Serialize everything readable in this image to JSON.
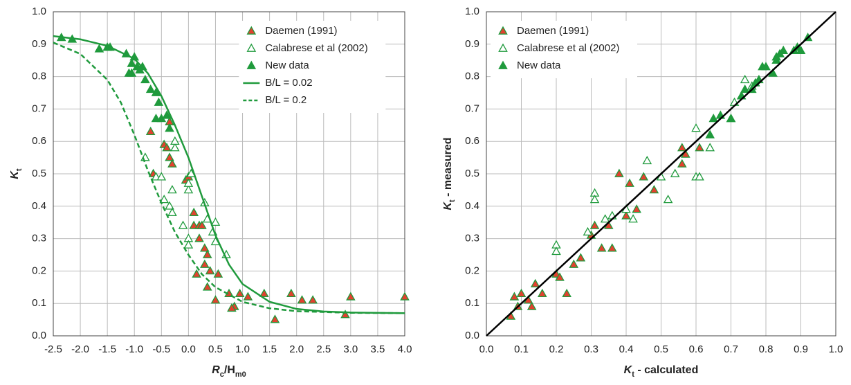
{
  "chart_data": [
    {
      "type": "scatter",
      "xlabel": [
        {
          "text": "R"
        },
        {
          "sub": "c"
        },
        {
          "text": "/H"
        },
        {
          "sub": "m0"
        }
      ],
      "ylabel": [
        {
          "text": "K"
        },
        {
          "sub": "t"
        }
      ],
      "xlim": [
        -2.5,
        4.0
      ],
      "xticks": [
        -2.5,
        {
          "value": -2,
          "label": "-2.0"
        },
        -1.5,
        {
          "value": -1,
          "label": "-1.0"
        },
        -0.5,
        {
          "value": 0,
          "label": "0.0"
        },
        0.5,
        {
          "value": 1,
          "label": "1.0"
        },
        1.5,
        {
          "value": 2,
          "label": "2.0"
        },
        2.5,
        {
          "value": 3,
          "label": "3.0"
        },
        3.5,
        {
          "value": 4,
          "label": "4.0"
        }
      ],
      "ylim": [
        0,
        1
      ],
      "yticks": [
        {
          "value": 0,
          "label": "0.0"
        },
        0.1,
        0.2,
        0.3,
        0.4,
        0.5,
        0.6,
        0.7,
        0.8,
        0.9,
        {
          "value": 1,
          "label": "1.0"
        }
      ],
      "grid": true,
      "legend": "upper right",
      "series": [
        {
          "name": "Daemen (1991)",
          "kind": "marker",
          "color": "#1f9a3c",
          "facecolor": "#e2412f",
          "x": [
            -0.7,
            -0.65,
            -0.45,
            -0.4,
            -0.35,
            -0.3,
            -0.35,
            -0.05,
            0,
            0.1,
            0.1,
            0.2,
            0.25,
            0.2,
            0.3,
            0.35,
            0.3,
            0.4,
            0.35,
            0.55,
            0.5,
            0.75,
            0.85,
            0.95,
            1.1,
            1.4,
            1.6,
            1.9,
            2.1,
            2.3,
            2.9,
            3.0,
            4.0,
            0.8,
            0.15
          ],
          "values": [
            0.63,
            0.5,
            0.59,
            0.58,
            0.55,
            0.53,
            0.66,
            0.48,
            0.49,
            0.38,
            0.34,
            0.34,
            0.34,
            0.3,
            0.27,
            0.25,
            0.22,
            0.2,
            0.15,
            0.19,
            0.11,
            0.13,
            0.09,
            0.13,
            0.12,
            0.13,
            0.05,
            0.13,
            0.11,
            0.11,
            0.065,
            0.12,
            0.12,
            0.085,
            0.19
          ]
        },
        {
          "name": "Calabrese et al (2002)",
          "kind": "marker",
          "color": "#1f9a3c",
          "facecolor": "#ffffff",
          "x": [
            -0.8,
            -0.6,
            -0.5,
            -0.45,
            -0.35,
            -0.3,
            -0.25,
            -0.25,
            -0.3,
            -0.1,
            0,
            0,
            0,
            0,
            0.3,
            0.35,
            0.45,
            0.5,
            0.5,
            0.7,
            0.05
          ],
          "values": [
            0.55,
            0.49,
            0.49,
            0.42,
            0.4,
            0.45,
            0.58,
            0.6,
            0.38,
            0.34,
            0.45,
            0.47,
            0.3,
            0.28,
            0.41,
            0.36,
            0.32,
            0.35,
            0.29,
            0.25,
            0.5
          ]
        },
        {
          "name": "New data",
          "kind": "marker",
          "color": "#1f9a3c",
          "facecolor": "#1f9a3c",
          "x": [
            -2.35,
            -2.15,
            -1.65,
            -1.5,
            -1.45,
            -1.15,
            -1.1,
            -1.05,
            -1.0,
            -0.95,
            -0.85,
            -0.8,
            -0.7,
            -0.6,
            -0.55,
            -0.6,
            -0.5,
            -0.4,
            -0.35,
            -1.05,
            -0.9
          ],
          "values": [
            0.92,
            0.915,
            0.885,
            0.89,
            0.89,
            0.87,
            0.81,
            0.84,
            0.86,
            0.83,
            0.83,
            0.79,
            0.76,
            0.75,
            0.72,
            0.67,
            0.67,
            0.68,
            0.64,
            0.81,
            0.82
          ]
        },
        {
          "name": "B/L = 0.02",
          "kind": "line",
          "style": "solid",
          "color": "#1f9a3c",
          "x": [
            -2.5,
            -2,
            -1.5,
            -1,
            -0.75,
            -0.5,
            -0.25,
            0,
            0.25,
            0.5,
            0.75,
            1,
            1.5,
            2,
            2.5,
            3,
            4
          ],
          "values": [
            0.925,
            0.915,
            0.895,
            0.855,
            0.81,
            0.74,
            0.65,
            0.55,
            0.43,
            0.31,
            0.22,
            0.16,
            0.105,
            0.083,
            0.075,
            0.072,
            0.07
          ]
        },
        {
          "name": "B/L = 0.2",
          "kind": "line",
          "style": "dashed",
          "color": "#1f9a3c",
          "x": [
            -2.5,
            -2,
            -1.5,
            -1.25,
            -1,
            -0.75,
            -0.5,
            -0.25,
            0,
            0.25,
            0.5,
            1,
            1.5,
            2,
            3,
            4
          ],
          "values": [
            0.905,
            0.87,
            0.79,
            0.72,
            0.62,
            0.51,
            0.41,
            0.32,
            0.25,
            0.19,
            0.15,
            0.105,
            0.085,
            0.076,
            0.071,
            0.07
          ]
        }
      ]
    },
    {
      "type": "scatter",
      "xlabel": [
        {
          "text": "K"
        },
        {
          "sub": "t"
        },
        {
          "text": " - calculated"
        }
      ],
      "ylabel": [
        {
          "text": "K"
        },
        {
          "sub": "t"
        },
        {
          "text": " - measured"
        }
      ],
      "xlim": [
        0,
        1
      ],
      "xticks": [
        {
          "value": 0,
          "label": "0.0"
        },
        0.1,
        0.2,
        0.3,
        0.4,
        0.5,
        0.6,
        0.7,
        0.8,
        0.9,
        {
          "value": 1,
          "label": "1.0"
        }
      ],
      "ylim": [
        0,
        1
      ],
      "yticks": [
        {
          "value": 0,
          "label": "0.0"
        },
        0.1,
        0.2,
        0.3,
        0.4,
        0.5,
        0.6,
        0.7,
        0.8,
        0.9,
        {
          "value": 1,
          "label": "1.0"
        }
      ],
      "grid": true,
      "legend": "upper left",
      "series": [
        {
          "name": "Daemen (1991)",
          "kind": "marker",
          "color": "#1f9a3c",
          "facecolor": "#e2412f",
          "x": [
            0.07,
            0.08,
            0.09,
            0.1,
            0.12,
            0.13,
            0.14,
            0.16,
            0.2,
            0.21,
            0.23,
            0.25,
            0.27,
            0.3,
            0.31,
            0.33,
            0.35,
            0.36,
            0.38,
            0.4,
            0.41,
            0.43,
            0.45,
            0.48,
            0.56,
            0.56,
            0.57,
            0.61
          ],
          "values": [
            0.06,
            0.12,
            0.09,
            0.13,
            0.11,
            0.09,
            0.16,
            0.13,
            0.19,
            0.18,
            0.13,
            0.22,
            0.24,
            0.31,
            0.34,
            0.27,
            0.34,
            0.27,
            0.5,
            0.37,
            0.47,
            0.39,
            0.49,
            0.45,
            0.58,
            0.53,
            0.56,
            0.58
          ]
        },
        {
          "name": "Calabrese et al (2002)",
          "kind": "marker",
          "color": "#1f9a3c",
          "facecolor": "#ffffff",
          "x": [
            0.2,
            0.2,
            0.29,
            0.31,
            0.31,
            0.34,
            0.36,
            0.4,
            0.42,
            0.46,
            0.5,
            0.52,
            0.54,
            0.6,
            0.61,
            0.6,
            0.64,
            0.7,
            0.71,
            0.74,
            0.76
          ],
          "values": [
            0.28,
            0.26,
            0.32,
            0.44,
            0.42,
            0.36,
            0.37,
            0.39,
            0.36,
            0.54,
            0.49,
            0.42,
            0.5,
            0.49,
            0.49,
            0.64,
            0.58,
            0.67,
            0.72,
            0.79,
            0.77
          ]
        },
        {
          "name": "New data",
          "kind": "marker",
          "color": "#1f9a3c",
          "facecolor": "#1f9a3c",
          "x": [
            0.64,
            0.65,
            0.67,
            0.7,
            0.73,
            0.74,
            0.76,
            0.77,
            0.79,
            0.8,
            0.82,
            0.83,
            0.84,
            0.85,
            0.88,
            0.89,
            0.9,
            0.92,
            0.78,
            0.83
          ],
          "values": [
            0.62,
            0.67,
            0.68,
            0.67,
            0.74,
            0.76,
            0.76,
            0.78,
            0.83,
            0.83,
            0.81,
            0.85,
            0.87,
            0.88,
            0.88,
            0.89,
            0.88,
            0.92,
            0.79,
            0.86
          ]
        },
        {
          "kind": "line",
          "style": "solid",
          "color": "#000000",
          "x": [
            0,
            1
          ],
          "values": [
            0,
            1
          ]
        }
      ]
    }
  ]
}
